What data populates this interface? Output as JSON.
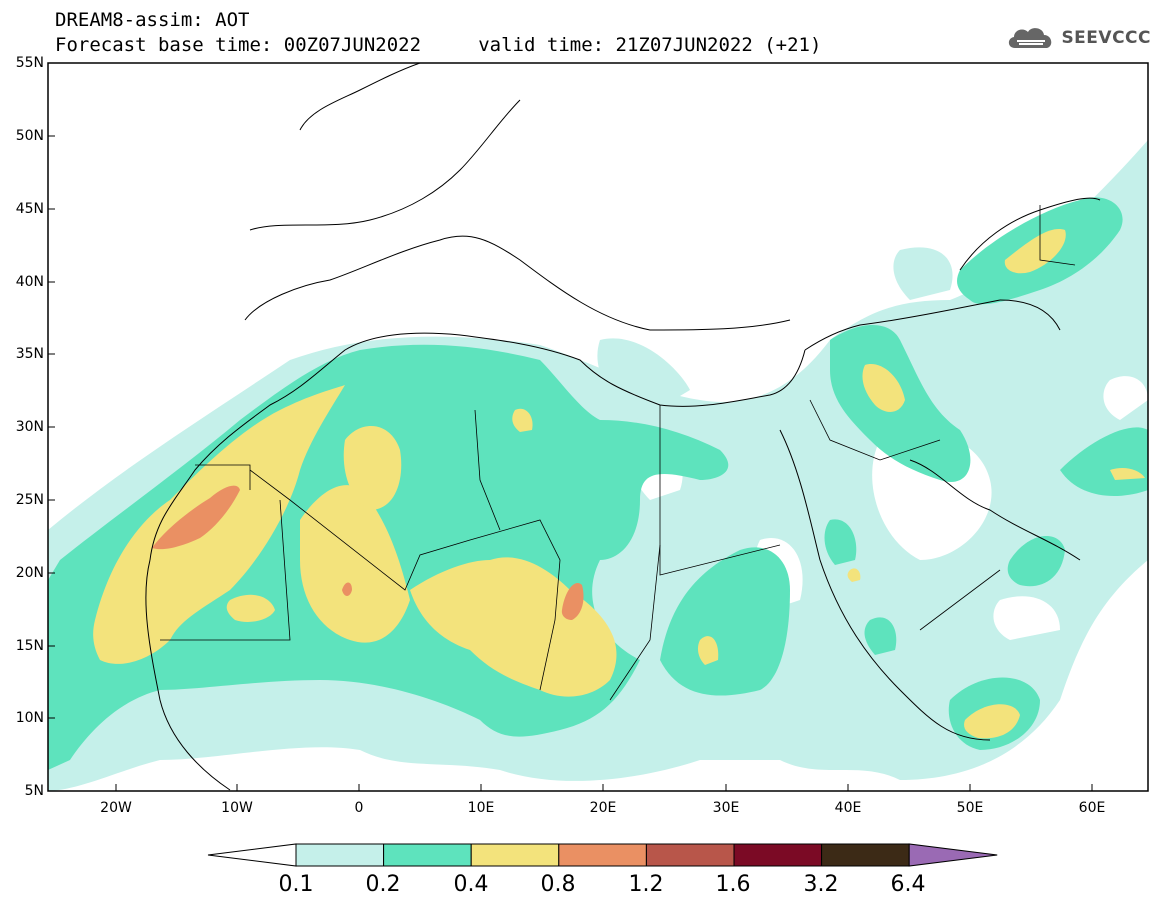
{
  "header": {
    "line1": "DREAM8-assim: AOT",
    "line2": "Forecast base time: 00Z07JUN2022     valid time: 21Z07JUN2022 (+21)"
  },
  "logo": {
    "text": "SEEVCCC",
    "icon": "cloud-icon",
    "color": "#555555"
  },
  "map": {
    "lon_range": [
      -25,
      65
    ],
    "lat_range": [
      5,
      55
    ],
    "lat_ticks": [
      "55N",
      "50N",
      "45N",
      "40N",
      "35N",
      "30N",
      "25N",
      "20N",
      "15N",
      "10N",
      "5N"
    ],
    "lon_ticks": [
      "20W",
      "10W",
      "0",
      "10E",
      "20E",
      "30E",
      "40E",
      "50E",
      "60E"
    ]
  },
  "legend": {
    "labels": [
      "0.1",
      "0.2",
      "0.4",
      "0.8",
      "1.2",
      "1.6",
      "3.2",
      "6.4"
    ],
    "colors": [
      "#ffffff",
      "#c5f0ea",
      "#5ee3bd",
      "#f3e37c",
      "#ea9063",
      "#b8564a",
      "#7b0a25",
      "#3c2a16",
      "#9a6ab4"
    ]
  }
}
